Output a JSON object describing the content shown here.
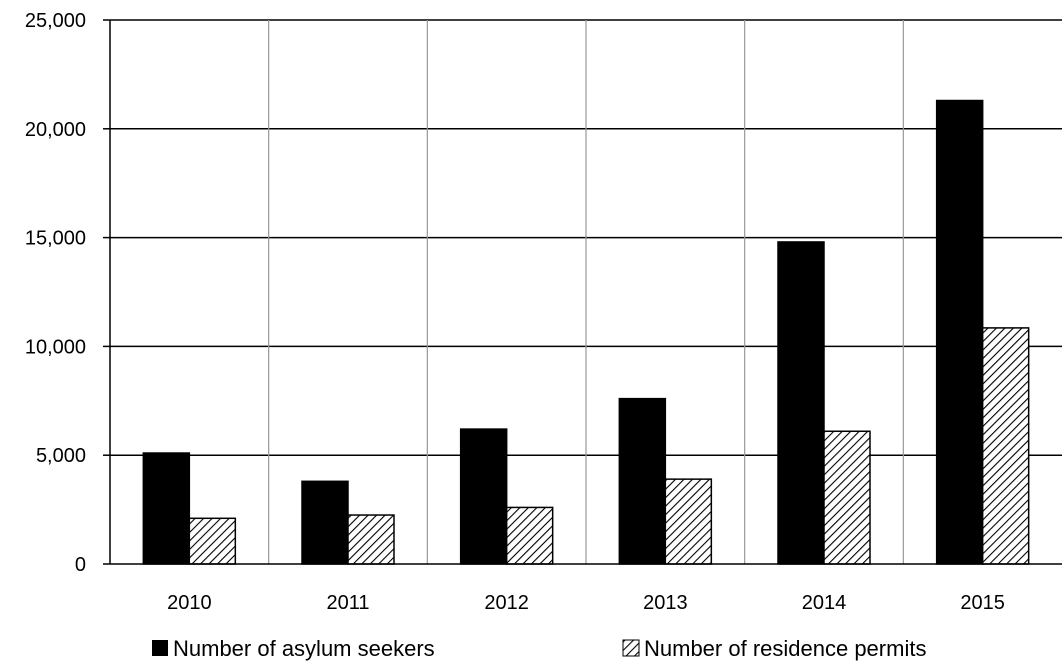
{
  "chart_data": {
    "type": "bar",
    "categories": [
      "2010",
      "2011",
      "2012",
      "2013",
      "2014",
      "2015"
    ],
    "series": [
      {
        "name": "Number of asylum seekers",
        "values": [
          5100,
          3800,
          6200,
          7600,
          14800,
          21300
        ],
        "color": "#000000",
        "pattern": "solid"
      },
      {
        "name": "Number of residence permits",
        "values": [
          2100,
          2250,
          2600,
          3900,
          6100,
          10850
        ],
        "color": "#ffffff",
        "pattern": "diagonal-hatch"
      }
    ],
    "y_ticks": [
      "0",
      "5,000",
      "10,000",
      "15,000",
      "20,000",
      "25,000"
    ],
    "y_tick_values": [
      0,
      5000,
      10000,
      15000,
      20000,
      25000
    ],
    "ylim": [
      0,
      25000
    ],
    "title": "",
    "xlabel": "",
    "ylabel": "",
    "grid": "horizontal and vertical",
    "legend_position": "bottom"
  }
}
